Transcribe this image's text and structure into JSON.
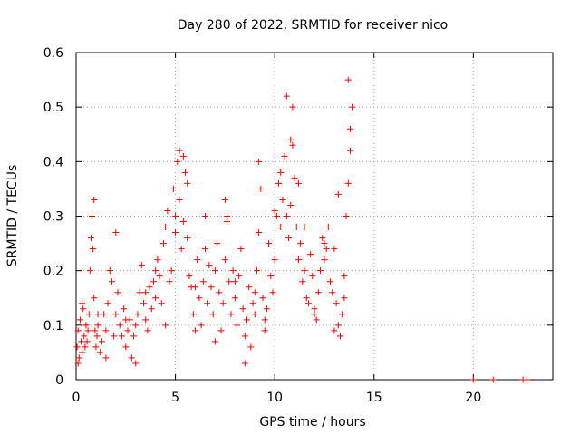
{
  "chart_data": {
    "type": "scatter",
    "title": "Day 280 of 2022, SRMTID for receiver nico",
    "xlabel": "GPS time / hours",
    "ylabel": "SRMTID / TECUs",
    "xlim": [
      0,
      24
    ],
    "ylim": [
      0,
      0.6
    ],
    "x_ticks": [
      0,
      5,
      10,
      15,
      20
    ],
    "x_tick_labels": [
      "0",
      "5",
      "10",
      "15",
      "20"
    ],
    "y_ticks": [
      0,
      0.1,
      0.2,
      0.3,
      0.4,
      0.5,
      0.6
    ],
    "y_tick_labels": [
      "0",
      "0.1",
      "0.2",
      "0.3",
      "0.4",
      "0.5",
      "0.6"
    ],
    "grid": true,
    "marker": "+",
    "color": "#ff0000",
    "series": [
      {
        "name": "SRMTID",
        "x": [
          0.05,
          0.1,
          0.15,
          0.2,
          0.25,
          0.3,
          0.35,
          0.4,
          0.45,
          0.5,
          0.55,
          0.6,
          0.65,
          0.7,
          0.75,
          0.8,
          0.85,
          0.9,
          0.95,
          1.0,
          1.05,
          1.1,
          1.2,
          1.3,
          1.4,
          1.5,
          1.6,
          1.7,
          1.8,
          1.9,
          2.0,
          2.1,
          2.2,
          2.3,
          2.4,
          2.5,
          2.6,
          2.7,
          2.8,
          2.9,
          3.0,
          3.1,
          3.2,
          3.3,
          3.4,
          3.5,
          3.6,
          3.7,
          3.8,
          3.9,
          4.0,
          4.1,
          4.2,
          4.3,
          4.4,
          4.5,
          4.6,
          4.7,
          4.8,
          4.9,
          5.0,
          5.1,
          5.2,
          5.3,
          5.4,
          5.5,
          5.6,
          5.7,
          5.8,
          5.9,
          6.0,
          6.1,
          6.2,
          6.3,
          6.4,
          6.5,
          6.6,
          6.7,
          6.8,
          6.9,
          7.0,
          7.1,
          7.2,
          7.3,
          7.4,
          7.5,
          7.6,
          7.7,
          7.8,
          7.9,
          8.0,
          8.1,
          8.2,
          8.3,
          8.4,
          8.5,
          8.6,
          8.7,
          8.8,
          8.9,
          9.0,
          9.1,
          9.2,
          9.3,
          9.4,
          9.5,
          9.6,
          9.7,
          9.8,
          9.9,
          10.0,
          10.1,
          10.2,
          10.3,
          10.4,
          10.5,
          10.6,
          10.7,
          10.8,
          10.9,
          11.0,
          11.1,
          11.2,
          11.3,
          11.4,
          11.5,
          11.6,
          11.7,
          11.8,
          11.9,
          12.0,
          12.1,
          12.2,
          12.3,
          12.4,
          12.5,
          12.6,
          12.7,
          12.8,
          12.9,
          13.0,
          13.1,
          13.2,
          13.3,
          13.4,
          13.5,
          13.6,
          13.7,
          13.8,
          13.9,
          0.1,
          0.3,
          0.5,
          0.9,
          1.1,
          1.5,
          2.0,
          2.5,
          3.0,
          3.5,
          4.0,
          4.5,
          5.0,
          5.2,
          5.4,
          5.6,
          6.0,
          6.5,
          7.0,
          7.5,
          7.6,
          8.0,
          8.5,
          9.0,
          9.2,
          9.5,
          10.0,
          10.3,
          10.6,
          10.8,
          10.9,
          11.2,
          11.5,
          12.0,
          12.5,
          13.0,
          13.2,
          13.5,
          13.7,
          13.8,
          20.0,
          21.0,
          22.5,
          22.7
        ],
        "y": [
          0.06,
          0.09,
          0.04,
          0.11,
          0.07,
          0.05,
          0.13,
          0.08,
          0.06,
          0.1,
          0.07,
          0.09,
          0.12,
          0.2,
          0.26,
          0.3,
          0.24,
          0.15,
          0.09,
          0.06,
          0.08,
          0.1,
          0.05,
          0.07,
          0.12,
          0.09,
          0.14,
          0.2,
          0.18,
          0.08,
          0.12,
          0.16,
          0.1,
          0.08,
          0.13,
          0.06,
          0.09,
          0.11,
          0.04,
          0.08,
          0.1,
          0.12,
          0.16,
          0.21,
          0.14,
          0.11,
          0.09,
          0.17,
          0.13,
          0.18,
          0.15,
          0.22,
          0.19,
          0.14,
          0.25,
          0.28,
          0.31,
          0.18,
          0.2,
          0.35,
          0.27,
          0.4,
          0.33,
          0.24,
          0.29,
          0.38,
          0.26,
          0.19,
          0.17,
          0.12,
          0.09,
          0.22,
          0.15,
          0.1,
          0.18,
          0.24,
          0.14,
          0.21,
          0.17,
          0.12,
          0.2,
          0.25,
          0.16,
          0.09,
          0.14,
          0.22,
          0.3,
          0.18,
          0.12,
          0.2,
          0.15,
          0.1,
          0.19,
          0.24,
          0.13,
          0.08,
          0.11,
          0.17,
          0.06,
          0.14,
          0.12,
          0.2,
          0.27,
          0.35,
          0.15,
          0.09,
          0.13,
          0.25,
          0.19,
          0.16,
          0.22,
          0.3,
          0.36,
          0.28,
          0.33,
          0.41,
          0.3,
          0.26,
          0.32,
          0.43,
          0.37,
          0.28,
          0.22,
          0.25,
          0.18,
          0.2,
          0.15,
          0.14,
          0.23,
          0.19,
          0.13,
          0.11,
          0.16,
          0.2,
          0.26,
          0.22,
          0.24,
          0.28,
          0.18,
          0.16,
          0.24,
          0.14,
          0.1,
          0.08,
          0.12,
          0.15,
          0.3,
          0.36,
          0.42,
          0.5,
          0.03,
          0.14,
          0.1,
          0.33,
          0.12,
          0.04,
          0.27,
          0.11,
          0.03,
          0.16,
          0.2,
          0.1,
          0.3,
          0.42,
          0.41,
          0.36,
          0.17,
          0.3,
          0.07,
          0.33,
          0.29,
          0.18,
          0.03,
          0.16,
          0.4,
          0.11,
          0.31,
          0.38,
          0.52,
          0.44,
          0.5,
          0.36,
          0.28,
          0.12,
          0.25,
          0.09,
          0.34,
          0.19,
          0.55,
          0.46,
          0.0,
          0.0,
          0.0,
          0.0
        ]
      }
    ]
  }
}
